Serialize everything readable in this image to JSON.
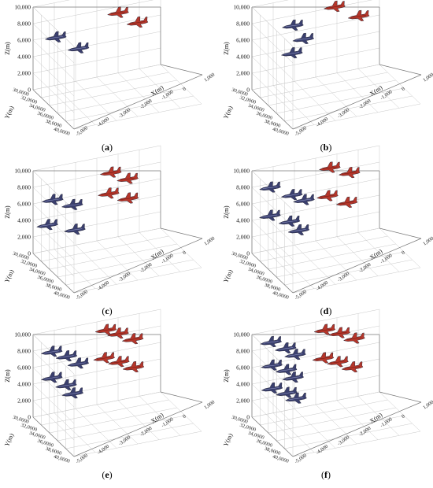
{
  "chart_data": [
    {
      "panel_label": "a",
      "type": "scatter",
      "z_axis": {
        "label": "Z(m)",
        "ticks": [
          "0",
          "2,000",
          "4,000",
          "6,000",
          "8,000",
          "10,000"
        ],
        "range": [
          0,
          10000
        ]
      },
      "y_axis": {
        "label": "Y(m)",
        "ticks": [
          "30,0000",
          "32,0000",
          "34,0000",
          "36,0000",
          "38,0000",
          "40,0000"
        ]
      },
      "x_axis": {
        "label": "X(m)",
        "ticks": [
          "-5,000",
          "-4,000",
          "-3,000",
          "-2,000",
          "-1,000",
          "0",
          "1,000"
        ]
      },
      "series": [
        {
          "team": "blue",
          "color": "#3a3f6e",
          "points": [
            [
              0.16,
              0.3,
              6000
            ],
            [
              0.34,
              0.26,
              4100
            ]
          ]
        },
        {
          "team": "red",
          "color": "#b5362a",
          "points": [
            [
              0.62,
              0.9,
              8000
            ],
            [
              0.78,
              0.72,
              6200
            ]
          ]
        }
      ]
    },
    {
      "panel_label": "b",
      "type": "scatter",
      "z_axis": {
        "label": "Z(m)",
        "ticks": [
          "0",
          "2,000",
          "4,000",
          "6,000",
          "8,000",
          "10,000"
        ],
        "range": [
          0,
          10000
        ]
      },
      "y_axis": {
        "label": "Y(m)",
        "ticks": [
          "30,0000",
          "32,0000",
          "34,0000",
          "36,0000",
          "38,0000",
          "40,0000"
        ]
      },
      "x_axis": {
        "label": "X(m)",
        "ticks": [
          "-5,000",
          "-4,000",
          "-3,000",
          "-2,000",
          "-1,000",
          "0",
          "1,000"
        ]
      },
      "series": [
        {
          "team": "blue",
          "color": "#3a3f6e",
          "points": [
            [
              0.28,
              0.78,
              7400
            ],
            [
              0.38,
              0.4,
              5200
            ],
            [
              0.3,
              0.22,
              3600
            ]
          ]
        },
        {
          "team": "red",
          "color": "#b5362a",
          "points": [
            [
              0.6,
              0.92,
              8800
            ],
            [
              0.8,
              0.7,
              6900
            ]
          ]
        }
      ]
    },
    {
      "panel_label": "c",
      "type": "scatter",
      "z_axis": {
        "label": "Z(m)",
        "ticks": [
          "0",
          "2,000",
          "4,000",
          "6,000",
          "8,000",
          "10,000"
        ],
        "range": [
          0,
          10000
        ]
      },
      "y_axis": {
        "label": "Y(m)",
        "ticks": [
          "30,0000",
          "32,0000",
          "34,0000",
          "36,0000",
          "38,0000",
          "40,0000"
        ]
      },
      "x_axis": {
        "label": "X(m)",
        "ticks": [
          "-5,000",
          "-4,000",
          "-3,000",
          "-2,000",
          "-1,000",
          "0",
          "1,000"
        ]
      },
      "series": [
        {
          "team": "blue",
          "color": "#3a3f6e",
          "points": [
            [
              0.12,
              0.62,
              6500
            ],
            [
              0.28,
              0.5,
              5300
            ],
            [
              0.1,
              0.18,
              3200
            ],
            [
              0.32,
              0.08,
              1900
            ]
          ]
        },
        {
          "team": "red",
          "color": "#b5362a",
          "points": [
            [
              0.56,
              0.96,
              8700
            ],
            [
              0.7,
              0.8,
              7400
            ],
            [
              0.56,
              0.6,
              5900
            ],
            [
              0.72,
              0.42,
              4700
            ]
          ]
        }
      ]
    },
    {
      "panel_label": "d",
      "type": "scatter",
      "z_axis": {
        "label": "Z(m)",
        "ticks": [
          "0",
          "2,000",
          "4,000",
          "6,000",
          "8,000",
          "10,000"
        ],
        "range": [
          0,
          10000
        ]
      },
      "y_axis": {
        "label": "Y(m)",
        "ticks": [
          "30,0000",
          "32,0000",
          "34,0000",
          "36,0000",
          "38,0000",
          "40,0000"
        ]
      },
      "x_axis": {
        "label": "X(m)",
        "ticks": [
          "-5,000",
          "-4,000",
          "-3,000",
          "-2,000",
          "-1,000",
          "0",
          "1,000"
        ]
      },
      "series": [
        {
          "team": "blue",
          "color": "#3a3f6e",
          "points": [
            [
              0.1,
              0.82,
              8200
            ],
            [
              0.28,
              0.62,
              6600
            ],
            [
              0.38,
              0.5,
              5600
            ],
            [
              0.12,
              0.38,
              4400
            ],
            [
              0.28,
              0.22,
              3100
            ],
            [
              0.36,
              0.08,
              1700
            ]
          ]
        },
        {
          "team": "red",
          "color": "#b5362a",
          "points": [
            [
              0.56,
              0.98,
              9300
            ],
            [
              0.72,
              0.86,
              8100
            ],
            [
              0.56,
              0.6,
              5600
            ],
            [
              0.72,
              0.44,
              4200
            ]
          ]
        }
      ]
    },
    {
      "panel_label": "e",
      "type": "scatter",
      "z_axis": {
        "label": "Z(m)",
        "ticks": [
          "0",
          "2,000",
          "4,000",
          "6,000",
          "8,000",
          "10,000"
        ],
        "range": [
          0,
          10000
        ]
      },
      "y_axis": {
        "label": "Y(m)",
        "ticks": [
          "30,0000",
          "32,0000",
          "34,0000",
          "36,0000",
          "38,0000",
          "40,0000"
        ]
      },
      "x_axis": {
        "label": "X(m)",
        "ticks": [
          "-5,000",
          "-4,000",
          "-3,000",
          "-2,000",
          "-1,000",
          "0",
          "1,000"
        ]
      },
      "series": [
        {
          "team": "blue",
          "color": "#3a3f6e",
          "points": [
            [
              0.1,
              0.9,
              8200
            ],
            [
              0.22,
              0.8,
              7200
            ],
            [
              0.32,
              0.64,
              5900
            ],
            [
              0.12,
              0.5,
              4700
            ],
            [
              0.24,
              0.32,
              3300
            ],
            [
              0.3,
              0.14,
              2000
            ]
          ]
        },
        {
          "team": "red",
          "color": "#b5362a",
          "points": [
            [
              0.52,
              0.98,
              9600
            ],
            [
              0.62,
              0.9,
              8800
            ],
            [
              0.74,
              0.8,
              7700
            ],
            [
              0.52,
              0.7,
              6000
            ],
            [
              0.64,
              0.6,
              5100
            ],
            [
              0.76,
              0.48,
              4000
            ]
          ]
        }
      ]
    },
    {
      "panel_label": "f",
      "type": "scatter",
      "z_axis": {
        "label": "Z(m)",
        "ticks": [
          "0",
          "2,000",
          "4,000",
          "6,000",
          "8,000",
          "10,000"
        ],
        "range": [
          0,
          10000
        ]
      },
      "y_axis": {
        "label": "Y(m)",
        "ticks": [
          "30,0000",
          "32,0000",
          "34,0000",
          "36,0000",
          "38,0000",
          "40,0000"
        ]
      },
      "x_axis": {
        "label": "X(m)",
        "ticks": [
          "-5,000",
          "-4,000",
          "-3,000",
          "-2,000",
          "-1,000",
          "0",
          "1,000"
        ]
      },
      "series": [
        {
          "team": "blue",
          "color": "#3a3f6e",
          "points": [
            [
              0.1,
              0.96,
              9400
            ],
            [
              0.22,
              0.86,
              8200
            ],
            [
              0.3,
              0.74,
              7100
            ],
            [
              0.12,
              0.66,
              6300
            ],
            [
              0.24,
              0.54,
              5300
            ],
            [
              0.3,
              0.4,
              4100
            ],
            [
              0.14,
              0.3,
              3200
            ],
            [
              0.26,
              0.18,
              2200
            ],
            [
              0.34,
              0.06,
              1200
            ]
          ]
        },
        {
          "team": "red",
          "color": "#b5362a",
          "points": [
            [
              0.52,
              0.98,
              9600
            ],
            [
              0.64,
              0.9,
              8800
            ],
            [
              0.76,
              0.8,
              7700
            ],
            [
              0.52,
              0.72,
              6000
            ],
            [
              0.64,
              0.62,
              5100
            ],
            [
              0.76,
              0.5,
              4000
            ]
          ]
        }
      ]
    }
  ]
}
